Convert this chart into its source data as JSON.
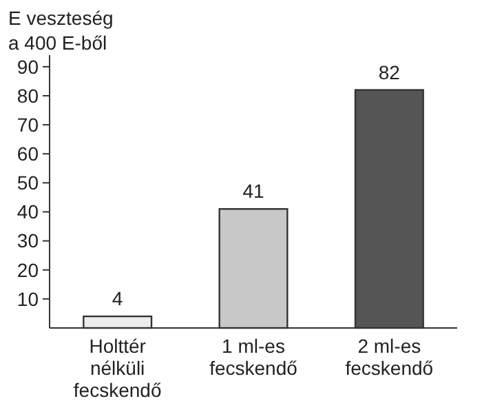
{
  "chart_data": {
    "type": "bar",
    "ylabel": "E veszteség\na 400 E-ből",
    "categories": [
      "Holttér\nnélküli\nfecskendő",
      "1 ml-es\nfecskendő",
      "2 ml-es\nfecskendő"
    ],
    "values": [
      4,
      41,
      82
    ],
    "colors": [
      "#ececec",
      "#c8c8c8",
      "#555555"
    ],
    "ylim": [
      0,
      94
    ],
    "yticks": [
      10,
      20,
      30,
      40,
      50,
      60,
      70,
      80,
      90
    ],
    "data_labels": true,
    "grid": false
  }
}
